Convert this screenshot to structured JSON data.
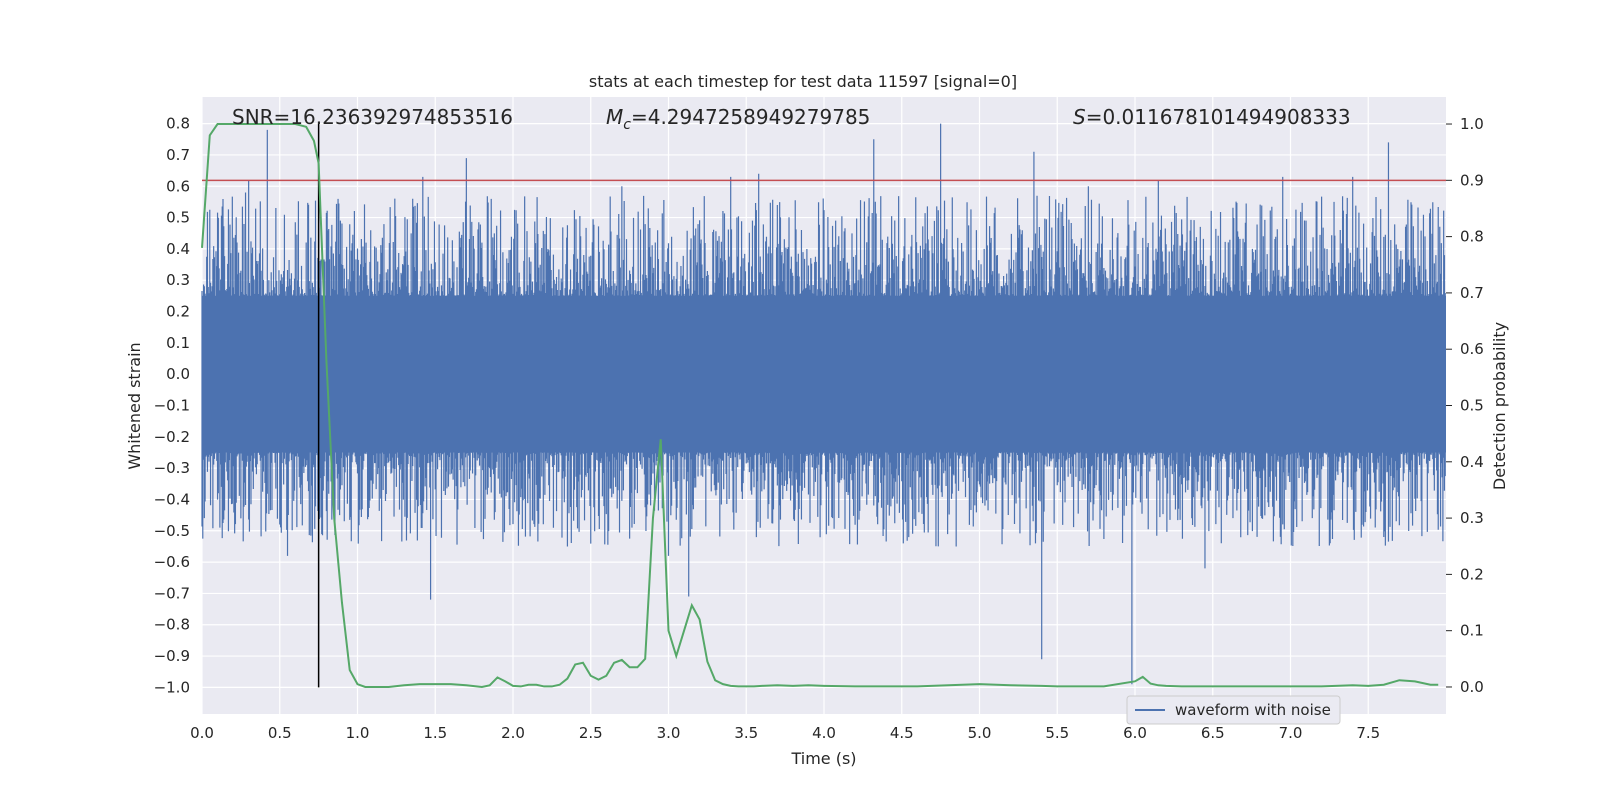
{
  "chart_data": {
    "type": "line",
    "title": "stats at each timestep for test data 11597 [signal=0]",
    "xlabel": "Time (s)",
    "ylabel": "Whitened strain",
    "y2label": "Detection probability",
    "xlim": [
      0.0,
      8.0
    ],
    "ylim": [
      -1.085,
      0.885
    ],
    "y2lim": [
      -0.048,
      1.048
    ],
    "xticks": [
      "0.0",
      "0.5",
      "1.0",
      "1.5",
      "2.0",
      "2.5",
      "3.0",
      "3.5",
      "4.0",
      "4.5",
      "5.0",
      "5.5",
      "6.0",
      "6.5",
      "7.0",
      "7.5"
    ],
    "yticks": [
      "0.8",
      "0.7",
      "0.6",
      "0.5",
      "0.4",
      "0.3",
      "0.2",
      "0.1",
      "0.0",
      "−0.1",
      "−0.2",
      "−0.3",
      "−0.4",
      "−0.5",
      "−0.6",
      "−0.7",
      "−0.8",
      "−0.9",
      "−1.0"
    ],
    "y2ticks": [
      "1.0",
      "0.9",
      "0.8",
      "0.7",
      "0.6",
      "0.5",
      "0.4",
      "0.3",
      "0.2",
      "0.1",
      "0.0"
    ],
    "grid": true,
    "legend": {
      "location": "lower-right",
      "entries": [
        "waveform with noise"
      ]
    },
    "annotations": {
      "snr": "SNR=16.236392974853516",
      "mc_symbol": "M",
      "mc_sub": "c",
      "mc_value": "=4.2947258949279785",
      "s_symbol": "S",
      "s_value": "=0.011678101494908333"
    },
    "threshold": {
      "axis": "right",
      "value": 0.9,
      "color": "#c44e52"
    },
    "marker_line": {
      "x": 0.75,
      "y_from": -1.0,
      "y_to": 0.8,
      "color": "#000000"
    },
    "waveform": {
      "name": "waveform with noise",
      "color": "#4c72b0",
      "envelope_core": 0.25,
      "spikes_up": [
        [
          0.42,
          0.78
        ],
        [
          0.3,
          0.62
        ],
        [
          1.42,
          0.63
        ],
        [
          1.7,
          0.69
        ],
        [
          3.4,
          0.63
        ],
        [
          3.58,
          0.64
        ],
        [
          4.32,
          0.75
        ],
        [
          4.75,
          0.8
        ],
        [
          5.35,
          0.71
        ],
        [
          6.15,
          0.62
        ],
        [
          6.95,
          0.63
        ],
        [
          7.4,
          0.63
        ],
        [
          7.63,
          0.74
        ],
        [
          0.28,
          0.58
        ],
        [
          2.7,
          0.6
        ],
        [
          5.7,
          0.6
        ]
      ],
      "spikes_down": [
        [
          0.55,
          -0.58
        ],
        [
          1.47,
          -0.72
        ],
        [
          3.13,
          -0.71
        ],
        [
          5.4,
          -0.91
        ],
        [
          5.98,
          -0.99
        ],
        [
          6.45,
          -0.62
        ],
        [
          0.85,
          -0.45
        ],
        [
          2.35,
          -0.55
        ],
        [
          3.0,
          -0.58
        ],
        [
          4.85,
          -0.55
        ],
        [
          7.6,
          -0.52
        ]
      ]
    },
    "detection_probability": {
      "color": "#55a868",
      "x": [
        0.0,
        0.05,
        0.1,
        0.15,
        0.2,
        0.3,
        0.4,
        0.5,
        0.6,
        0.67,
        0.72,
        0.75,
        0.8,
        0.85,
        0.9,
        0.95,
        1.0,
        1.05,
        1.1,
        1.2,
        1.3,
        1.4,
        1.5,
        1.6,
        1.7,
        1.8,
        1.85,
        1.9,
        1.95,
        2.0,
        2.05,
        2.1,
        2.15,
        2.2,
        2.25,
        2.3,
        2.35,
        2.4,
        2.45,
        2.5,
        2.55,
        2.6,
        2.65,
        2.7,
        2.75,
        2.8,
        2.85,
        2.9,
        2.95,
        3.0,
        3.05,
        3.1,
        3.15,
        3.2,
        3.25,
        3.3,
        3.35,
        3.4,
        3.45,
        3.5,
        3.55,
        3.6,
        3.7,
        3.8,
        3.9,
        4.0,
        4.2,
        4.4,
        4.6,
        4.8,
        5.0,
        5.2,
        5.4,
        5.5,
        5.6,
        5.8,
        6.0,
        6.05,
        6.1,
        6.15,
        6.2,
        6.3,
        6.5,
        6.7,
        7.0,
        7.2,
        7.4,
        7.5,
        7.6,
        7.7,
        7.8,
        7.9,
        7.95
      ],
      "y": [
        0.78,
        0.98,
        1.0,
        1.0,
        1.0,
        1.0,
        1.0,
        1.0,
        1.0,
        0.995,
        0.97,
        0.93,
        0.58,
        0.3,
        0.15,
        0.03,
        0.005,
        0.0,
        0.0,
        0.0,
        0.003,
        0.005,
        0.005,
        0.005,
        0.003,
        0.0,
        0.003,
        0.017,
        0.01,
        0.002,
        0.001,
        0.004,
        0.004,
        0.001,
        0.001,
        0.004,
        0.015,
        0.04,
        0.043,
        0.02,
        0.013,
        0.02,
        0.043,
        0.048,
        0.035,
        0.035,
        0.05,
        0.3,
        0.44,
        0.1,
        0.055,
        0.1,
        0.145,
        0.12,
        0.045,
        0.012,
        0.005,
        0.002,
        0.001,
        0.001,
        0.001,
        0.002,
        0.003,
        0.002,
        0.003,
        0.002,
        0.001,
        0.001,
        0.001,
        0.003,
        0.005,
        0.003,
        0.002,
        0.001,
        0.001,
        0.001,
        0.01,
        0.018,
        0.006,
        0.003,
        0.002,
        0.001,
        0.001,
        0.001,
        0.001,
        0.001,
        0.003,
        0.002,
        0.004,
        0.012,
        0.01,
        0.004,
        0.004
      ]
    }
  }
}
